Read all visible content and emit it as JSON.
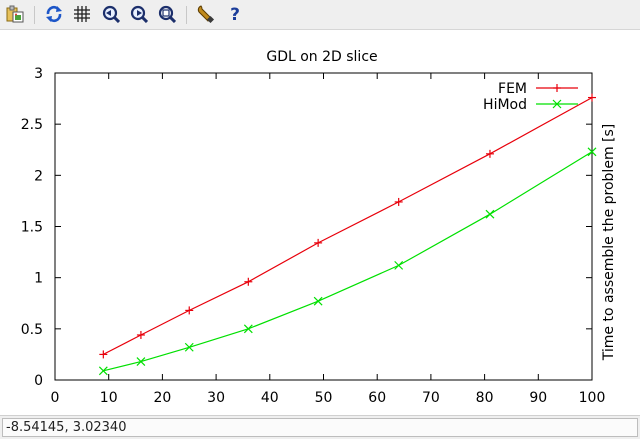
{
  "toolbar": {
    "items": [
      {
        "name": "copy-to-clipboard-icon"
      },
      {
        "name": "replot-icon"
      },
      {
        "name": "toggle-grid-icon"
      },
      {
        "name": "previous-zoom-icon"
      },
      {
        "name": "next-zoom-icon"
      },
      {
        "name": "autoscale-icon"
      },
      {
        "name": "settings-icon"
      },
      {
        "name": "help-icon"
      }
    ]
  },
  "status": {
    "coordinates": "-8.54145,  3.02340"
  },
  "colors": {
    "fem": "#e8000b",
    "himod": "#00e000",
    "axis": "#000000"
  },
  "chart_data": {
    "type": "line",
    "title": "GDL on 2D slice",
    "xlabel": "",
    "ylabel": "Time to assemble the problem [s]",
    "xlim": [
      0,
      100
    ],
    "ylim": [
      0,
      3
    ],
    "xticks": [
      "0",
      "10",
      "20",
      "30",
      "40",
      "50",
      "60",
      "70",
      "80",
      "90",
      "100"
    ],
    "yticks": [
      "0",
      "0.5",
      "1",
      "1.5",
      "2",
      "2.5",
      "3"
    ],
    "legend_position": "top-right",
    "grid": false,
    "series": [
      {
        "name": "FEM",
        "marker": "+",
        "color": "#e8000b",
        "x": [
          9,
          16,
          25,
          36,
          49,
          64,
          81,
          100
        ],
        "y": [
          0.25,
          0.44,
          0.68,
          0.96,
          1.34,
          1.74,
          2.21,
          2.76
        ]
      },
      {
        "name": "HiMod",
        "marker": "x",
        "color": "#00e000",
        "x": [
          9,
          16,
          25,
          36,
          49,
          64,
          81,
          100
        ],
        "y": [
          0.09,
          0.18,
          0.32,
          0.5,
          0.77,
          1.12,
          1.62,
          2.23
        ]
      }
    ]
  }
}
